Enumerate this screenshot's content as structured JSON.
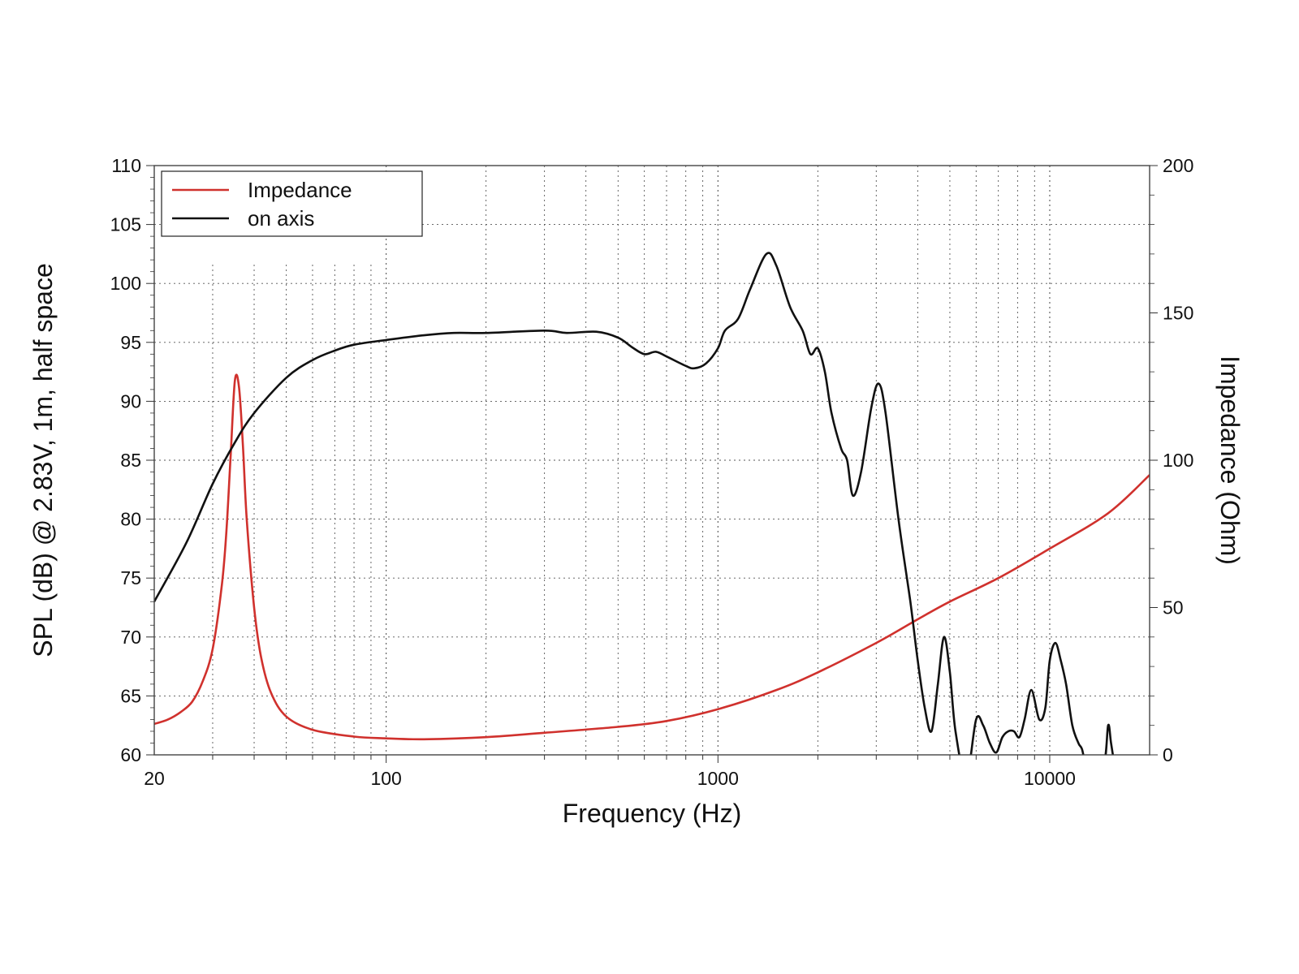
{
  "chart_data": {
    "type": "line",
    "title": "",
    "xlabel": "Frequency (Hz)",
    "ylabel": "SPL (dB) @ 2.83V, 1m, half space",
    "y2label": "Impedance (Ohm)",
    "x_scale": "log",
    "xlim": [
      20,
      20000
    ],
    "ylim": [
      60,
      110
    ],
    "y2lim": [
      0,
      200
    ],
    "grid": true,
    "legend_position": "top-left",
    "x_ticks": [
      {
        "value": 20,
        "label": "20"
      },
      {
        "value": 100,
        "label": "100"
      },
      {
        "value": 1000,
        "label": "1000"
      },
      {
        "value": 10000,
        "label": "10000"
      }
    ],
    "y_ticks": [
      {
        "value": 60,
        "label": "60"
      },
      {
        "value": 65,
        "label": "65"
      },
      {
        "value": 70,
        "label": "70"
      },
      {
        "value": 75,
        "label": "75"
      },
      {
        "value": 80,
        "label": "80"
      },
      {
        "value": 85,
        "label": "85"
      },
      {
        "value": 90,
        "label": "90"
      },
      {
        "value": 95,
        "label": "95"
      },
      {
        "value": 100,
        "label": "100"
      },
      {
        "value": 105,
        "label": "105"
      },
      {
        "value": 110,
        "label": "110"
      }
    ],
    "y2_ticks": [
      {
        "value": 0,
        "label": "0"
      },
      {
        "value": 50,
        "label": "50"
      },
      {
        "value": 100,
        "label": "100"
      },
      {
        "value": 150,
        "label": "150"
      },
      {
        "value": 200,
        "label": "200"
      }
    ],
    "series": [
      {
        "name": "Impedance",
        "axis": "right",
        "color": "#d0312d",
        "points": [
          [
            20,
            10.5
          ],
          [
            22,
            12
          ],
          [
            24,
            14.5
          ],
          [
            26,
            18
          ],
          [
            28,
            25
          ],
          [
            30,
            36
          ],
          [
            32,
            58
          ],
          [
            33,
            76
          ],
          [
            34,
            102
          ],
          [
            35,
            127
          ],
          [
            36,
            125
          ],
          [
            37,
            105
          ],
          [
            38,
            80
          ],
          [
            40,
            50
          ],
          [
            42,
            33
          ],
          [
            45,
            21
          ],
          [
            50,
            13
          ],
          [
            60,
            8.5
          ],
          [
            80,
            6.2
          ],
          [
            100,
            5.6
          ],
          [
            130,
            5.3
          ],
          [
            200,
            6
          ],
          [
            300,
            7.5
          ],
          [
            500,
            9.5
          ],
          [
            700,
            11.5
          ],
          [
            1000,
            15.5
          ],
          [
            1500,
            22
          ],
          [
            2000,
            28
          ],
          [
            3000,
            38
          ],
          [
            4000,
            46
          ],
          [
            5000,
            52
          ],
          [
            7000,
            60
          ],
          [
            10000,
            70
          ],
          [
            15000,
            82
          ],
          [
            20000,
            95
          ]
        ]
      },
      {
        "name": "on axis",
        "axis": "left",
        "color": "#111111",
        "points": [
          [
            20,
            73
          ],
          [
            25,
            78
          ],
          [
            30,
            83
          ],
          [
            35,
            86.5
          ],
          [
            40,
            89
          ],
          [
            50,
            92
          ],
          [
            60,
            93.5
          ],
          [
            70,
            94.3
          ],
          [
            80,
            94.8
          ],
          [
            100,
            95.2
          ],
          [
            130,
            95.6
          ],
          [
            160,
            95.8
          ],
          [
            200,
            95.8
          ],
          [
            300,
            96
          ],
          [
            350,
            95.8
          ],
          [
            430,
            95.9
          ],
          [
            500,
            95.4
          ],
          [
            550,
            94.6
          ],
          [
            600,
            94
          ],
          [
            650,
            94.2
          ],
          [
            700,
            93.8
          ],
          [
            800,
            93
          ],
          [
            850,
            92.8
          ],
          [
            920,
            93.2
          ],
          [
            1000,
            94.5
          ],
          [
            1050,
            96
          ],
          [
            1150,
            97
          ],
          [
            1250,
            99.5
          ],
          [
            1400,
            102.5
          ],
          [
            1500,
            101.5
          ],
          [
            1650,
            98
          ],
          [
            1800,
            96
          ],
          [
            1900,
            94
          ],
          [
            2000,
            94.5
          ],
          [
            2100,
            92.5
          ],
          [
            2200,
            89
          ],
          [
            2350,
            86
          ],
          [
            2450,
            85
          ],
          [
            2550,
            82
          ],
          [
            2700,
            84
          ],
          [
            2900,
            89.5
          ],
          [
            3050,
            91.5
          ],
          [
            3200,
            89
          ],
          [
            3500,
            80
          ],
          [
            3800,
            73
          ],
          [
            4000,
            68
          ],
          [
            4200,
            64
          ],
          [
            4400,
            62
          ],
          [
            4600,
            66
          ],
          [
            4800,
            70
          ],
          [
            5000,
            67
          ],
          [
            5200,
            62
          ],
          [
            5600,
            58
          ],
          [
            6000,
            63
          ],
          [
            6300,
            62.5
          ],
          [
            6600,
            61
          ],
          [
            6900,
            60.2
          ],
          [
            7200,
            61.5
          ],
          [
            7500,
            62
          ],
          [
            7800,
            62
          ],
          [
            8100,
            61.5
          ],
          [
            8400,
            63
          ],
          [
            8800,
            65.5
          ],
          [
            9300,
            63
          ],
          [
            9700,
            64
          ],
          [
            10000,
            68
          ],
          [
            10400,
            69.5
          ],
          [
            10800,
            68
          ],
          [
            11200,
            66
          ],
          [
            11700,
            62.5
          ],
          [
            12200,
            61
          ],
          [
            12500,
            60.5
          ],
          [
            13000,
            59
          ],
          [
            14500,
            59
          ],
          [
            15000,
            62.5
          ],
          [
            15300,
            61
          ],
          [
            15700,
            59
          ]
        ]
      }
    ]
  }
}
